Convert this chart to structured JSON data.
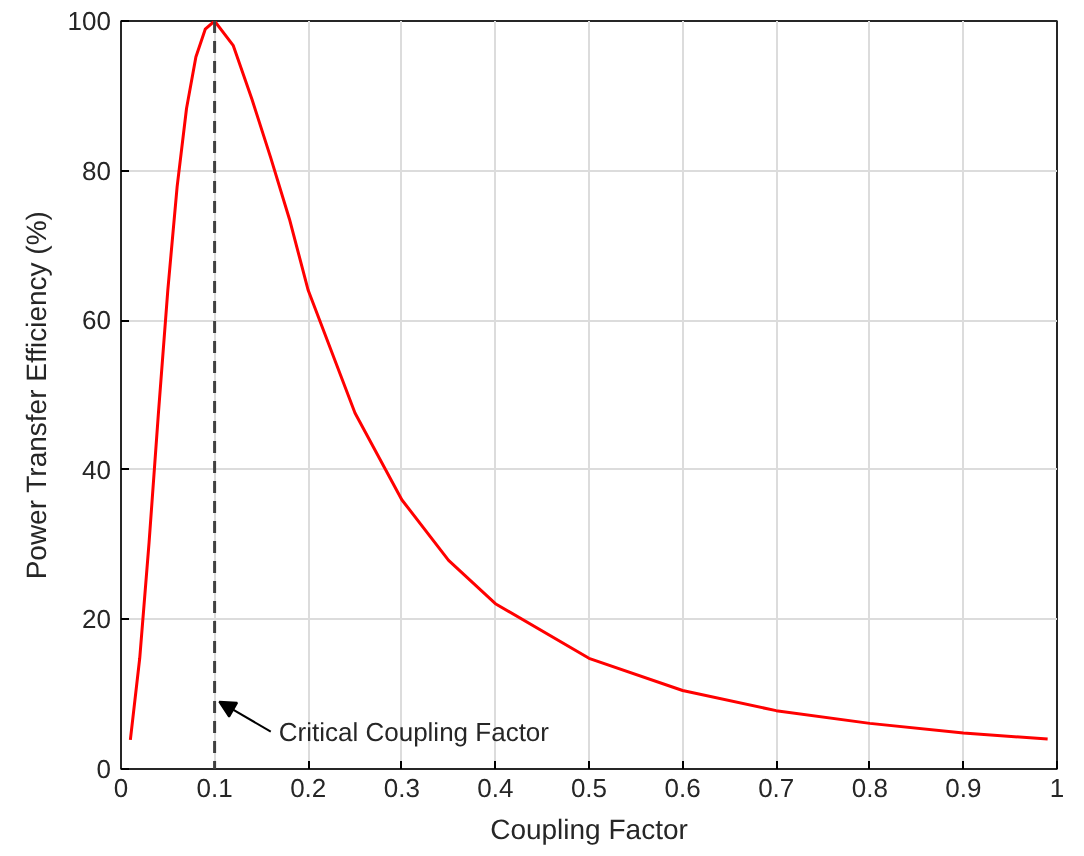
{
  "chart_data": {
    "type": "line",
    "xlabel": "Coupling Factor",
    "ylabel": "Power Transfer Efficiency (%)",
    "x": [
      0.01,
      0.02,
      0.03,
      0.04,
      0.05,
      0.06,
      0.07,
      0.08,
      0.09,
      0.1,
      0.12,
      0.14,
      0.16,
      0.18,
      0.2,
      0.25,
      0.3,
      0.35,
      0.4,
      0.5,
      0.6,
      0.7,
      0.8,
      0.9,
      0.99
    ],
    "series": [
      {
        "color": "#ff0000",
        "values": [
          3.9,
          14.8,
          30.3,
          47.6,
          64,
          77.9,
          88.3,
          95.2,
          98.9,
          100,
          96.7,
          89.5,
          81.7,
          73.5,
          64,
          47.6,
          36,
          27.9,
          22.1,
          14.8,
          10.5,
          7.8,
          6.1,
          4.8,
          4.0
        ]
      }
    ],
    "xlim": [
      0,
      1
    ],
    "ylim": [
      0,
      100
    ],
    "xticks": [
      0,
      0.1,
      0.2,
      0.3,
      0.4,
      0.5,
      0.6,
      0.7,
      0.8,
      0.9,
      1
    ],
    "yticks": [
      0,
      20,
      40,
      60,
      80,
      100
    ],
    "grid": true,
    "marker": "none",
    "line_style": "solid",
    "ref_lines": [
      {
        "axis": "x",
        "value": 0.1,
        "color": "#404040",
        "line_style": "dashed"
      }
    ],
    "annotations": [
      {
        "text": "Critical Coupling Factor",
        "x": 0.1,
        "y": 9
      }
    ]
  }
}
